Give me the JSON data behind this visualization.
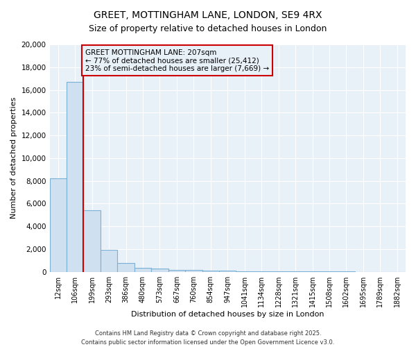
{
  "title": "GREET, MOTTINGHAM LANE, LONDON, SE9 4RX",
  "subtitle": "Size of property relative to detached houses in London",
  "xlabel": "Distribution of detached houses by size in London",
  "ylabel": "Number of detached properties",
  "categories": [
    "12sqm",
    "106sqm",
    "199sqm",
    "293sqm",
    "386sqm",
    "480sqm",
    "573sqm",
    "667sqm",
    "760sqm",
    "854sqm",
    "947sqm",
    "1041sqm",
    "1134sqm",
    "1228sqm",
    "1321sqm",
    "1415sqm",
    "1508sqm",
    "1602sqm",
    "1695sqm",
    "1789sqm",
    "1882sqm"
  ],
  "bar_values": [
    8200,
    16700,
    5400,
    1900,
    750,
    350,
    250,
    150,
    150,
    100,
    80,
    60,
    40,
    30,
    20,
    15,
    10,
    8,
    5,
    3,
    2
  ],
  "bar_color": "#cfe0f0",
  "bar_edge_color": "#7ab0d4",
  "red_line_x": 1.5,
  "ylim": [
    0,
    20000
  ],
  "yticks": [
    0,
    2000,
    4000,
    6000,
    8000,
    10000,
    12000,
    14000,
    16000,
    18000,
    20000
  ],
  "annotation_text": "GREET MOTTINGHAM LANE: 207sqm\n← 77% of detached houses are smaller (25,412)\n23% of semi-detached houses are larger (7,669) →",
  "annotation_box_color": "#cc0000",
  "footer_line1": "Contains HM Land Registry data © Crown copyright and database right 2025.",
  "footer_line2": "Contains public sector information licensed under the Open Government Licence v3.0.",
  "bg_color": "#ffffff",
  "plot_bg_color": "#e8f0f8",
  "grid_color": "#ffffff",
  "title_fontsize": 10,
  "subtitle_fontsize": 9,
  "tick_fontsize": 7,
  "ylabel_fontsize": 8,
  "xlabel_fontsize": 8,
  "footer_fontsize": 6,
  "annotation_fontsize": 7.5
}
